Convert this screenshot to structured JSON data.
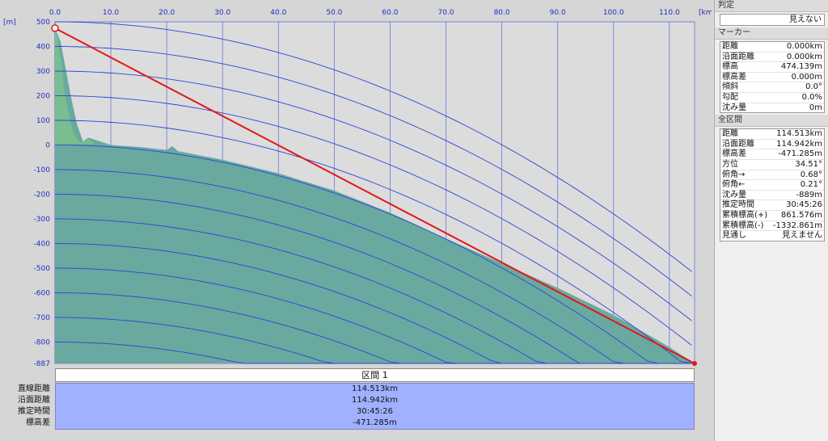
{
  "chart": {
    "y_unit": "[m]",
    "x_unit": "[km]",
    "x_ticks": [
      "0.0",
      "10.0",
      "20.0",
      "30.0",
      "40.0",
      "50.0",
      "60.0",
      "70.0",
      "80.0",
      "90.0",
      "100.0",
      "110.0"
    ],
    "y_ticks": [
      "500",
      "400",
      "300",
      "200",
      "100",
      "0",
      "-100",
      "-200",
      "-300",
      "-400",
      "-500",
      "-600",
      "-700",
      "-800",
      "-887"
    ],
    "colors": {
      "terrain": "#6aa9a0",
      "los": "#e01818",
      "curves": "#2a46d8",
      "grid": "#3a4ee0",
      "plot_bg": "#dcdcdc"
    }
  },
  "chart_data": {
    "type": "area",
    "title": "",
    "xlabel": "[km]",
    "ylabel": "[m]",
    "xlim": [
      0,
      114.513
    ],
    "ylim": [
      -887,
      500
    ],
    "series": [
      {
        "x": [
          0,
          1,
          2,
          3,
          4,
          5,
          6,
          8,
          10,
          15,
          20,
          21,
          22,
          30,
          40,
          50,
          60,
          70,
          80,
          90,
          100,
          110,
          114.513
        ],
        "y": [
          474,
          420,
          300,
          180,
          80,
          15,
          30,
          15,
          0,
          -8,
          -20,
          -5,
          -25,
          -60,
          -115,
          -185,
          -275,
          -380,
          -480,
          -580,
          -690,
          -820,
          -887
        ]
      }
    ],
    "line_of_sight": {
      "x": [
        0,
        114.513
      ],
      "y": [
        474.139,
        -887
      ]
    }
  },
  "segment": {
    "header": "区間 1",
    "labels": [
      "直線距離",
      "沿面距離",
      "推定時間",
      "標高差"
    ],
    "values": [
      "114.513km",
      "114.942km",
      "30:45:26",
      "-471.285m"
    ]
  },
  "panel": {
    "judge_title": "判定",
    "judge_value": "見えない",
    "marker_title": "マーカー",
    "marker_rows": [
      {
        "k": "距離",
        "v": "0.000km"
      },
      {
        "k": "沿面距離",
        "v": "0.000km"
      },
      {
        "k": "標高",
        "v": "474.139m"
      },
      {
        "k": "標高差",
        "v": "0.000m"
      },
      {
        "k": "傾斜",
        "v": "0.0°"
      },
      {
        "k": "勾配",
        "v": "0.0%"
      },
      {
        "k": "沈み量",
        "v": "0m"
      }
    ],
    "all_title": "全区間",
    "all_rows": [
      {
        "k": "距離",
        "v": "114.513km"
      },
      {
        "k": "沿面距離",
        "v": "114.942km"
      },
      {
        "k": "標高差",
        "v": "-471.285m"
      },
      {
        "k": "方位",
        "v": "34.51°"
      },
      {
        "k": "俯角→",
        "v": "0.68°"
      },
      {
        "k": "俯角←",
        "v": "0.21°"
      },
      {
        "k": "沈み量",
        "v": "-889m"
      },
      {
        "k": "推定時間",
        "v": "30:45:26"
      },
      {
        "k": "累積標高(+)",
        "v": "861.576m"
      },
      {
        "k": "累積標高(-)",
        "v": "-1332.861m"
      },
      {
        "k": "見通し",
        "v": "見えません"
      }
    ]
  }
}
